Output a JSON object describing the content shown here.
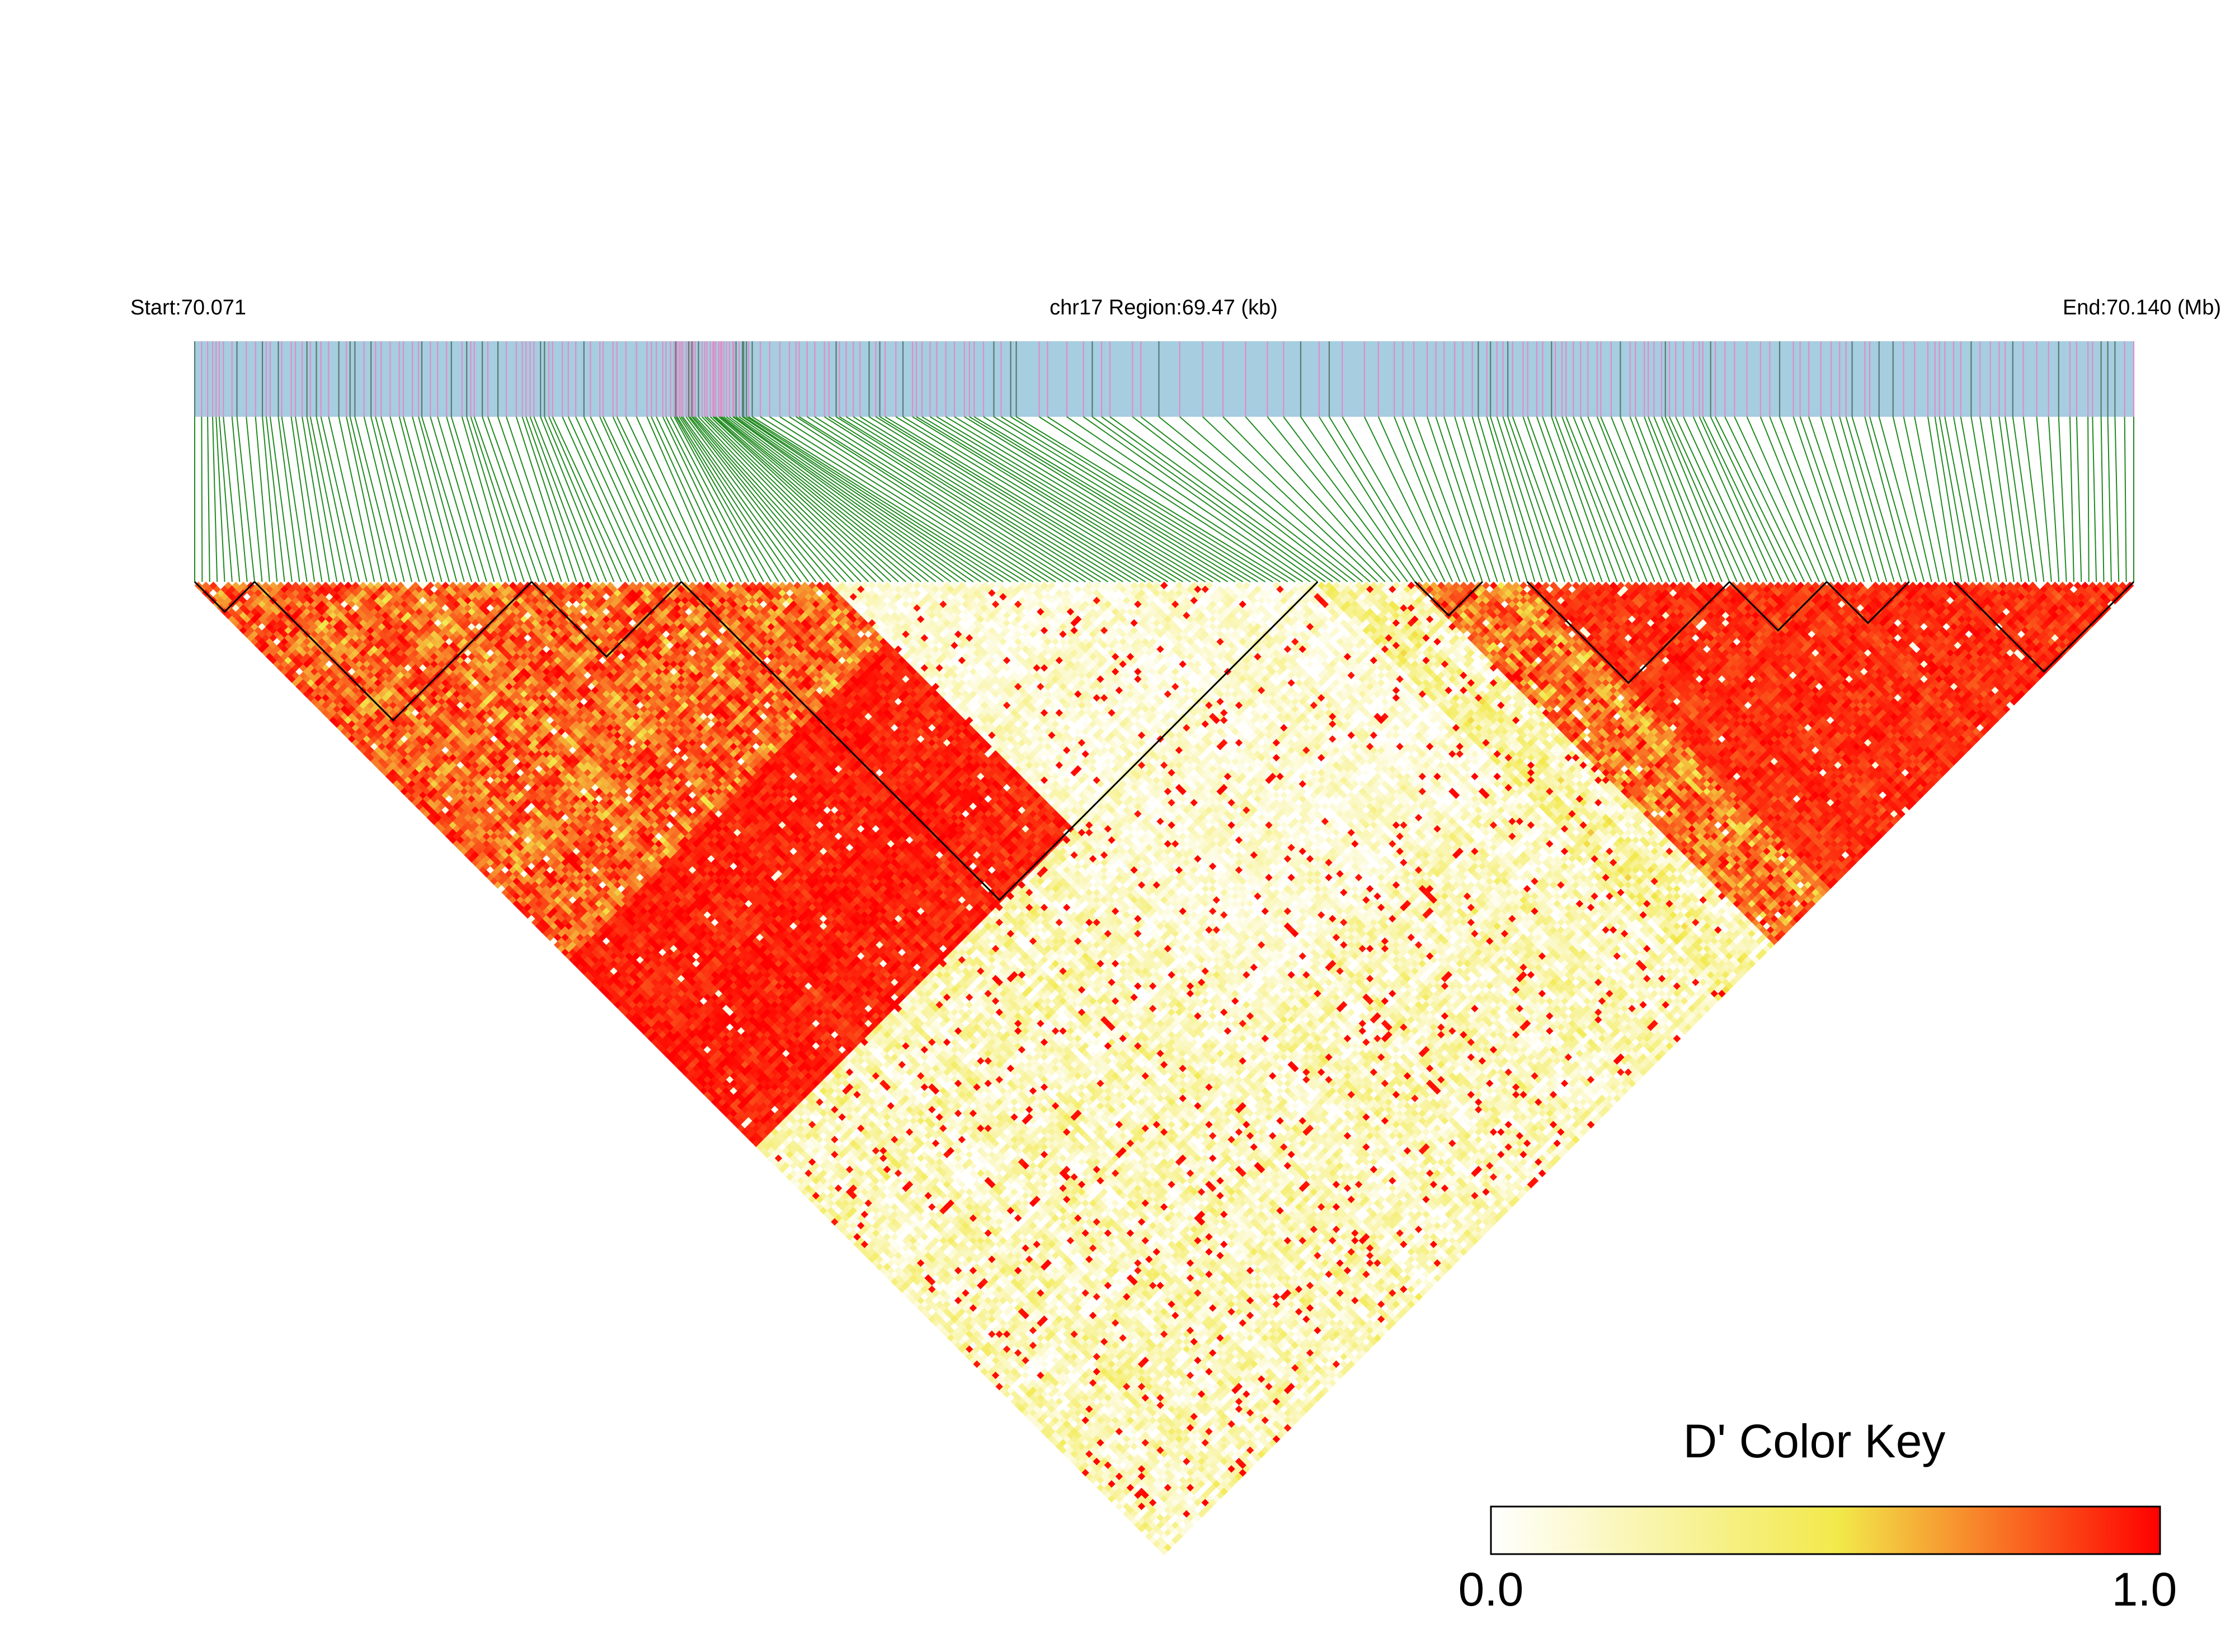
{
  "chart_data": {
    "type": "heatmap",
    "title": "",
    "header": {
      "start_label": "Start:70.071",
      "region_label": "chr17 Region:69.47 (kb)",
      "end_label": "End:70.140 (Mb)"
    },
    "region": {
      "chromosome": "chr17",
      "start_mb": 70.071,
      "end_mb": 70.14,
      "length_kb": 69.47
    },
    "snp_count": 260,
    "metric": "D'",
    "color_key": {
      "title": "D' Color Key",
      "min_label": "0.0",
      "max_label": "1.0",
      "min": 0.0,
      "max": 1.0,
      "colors": [
        "#ffffff",
        "#f2e94a",
        "#ff0000"
      ]
    },
    "colors": {
      "track_background": "#a6cde0",
      "track_variant_common": "#dc8fc8",
      "track_variant_other": "#5a7b70",
      "connector_lines": "#1f8a1f",
      "block_outline": "#000000"
    },
    "ld_blocks": [
      {
        "first_snp": 0,
        "last_snp": 8
      },
      {
        "first_snp": 8,
        "last_snp": 45
      },
      {
        "first_snp": 45,
        "last_snp": 65
      },
      {
        "first_snp": 65,
        "last_snp": 150
      },
      {
        "first_snp": 163,
        "last_snp": 172
      },
      {
        "first_snp": 178,
        "last_snp": 205
      },
      {
        "first_snp": 205,
        "last_snp": 218
      },
      {
        "first_snp": 218,
        "last_snp": 229
      },
      {
        "first_snp": 235,
        "last_snp": 259
      }
    ],
    "ld_regions": [
      {
        "first_snp": 0,
        "last_snp": 150,
        "base": 0.93,
        "spread": 0.14
      },
      {
        "first_snp": 0,
        "last_snp": 100,
        "base": 0.78,
        "spread": 0.32
      },
      {
        "first_snp": 85,
        "last_snp": 200,
        "base": 0.1,
        "spread": 0.26
      },
      {
        "first_snp": 150,
        "last_snp": 259,
        "base": 0.22,
        "spread": 0.4
      },
      {
        "first_snp": 163,
        "last_snp": 259,
        "base": 0.72,
        "spread": 0.34
      },
      {
        "first_snp": 178,
        "last_snp": 259,
        "base": 0.9,
        "spread": 0.14
      }
    ],
    "ld_default": {
      "base": 0.16,
      "spread": 0.36
    }
  }
}
